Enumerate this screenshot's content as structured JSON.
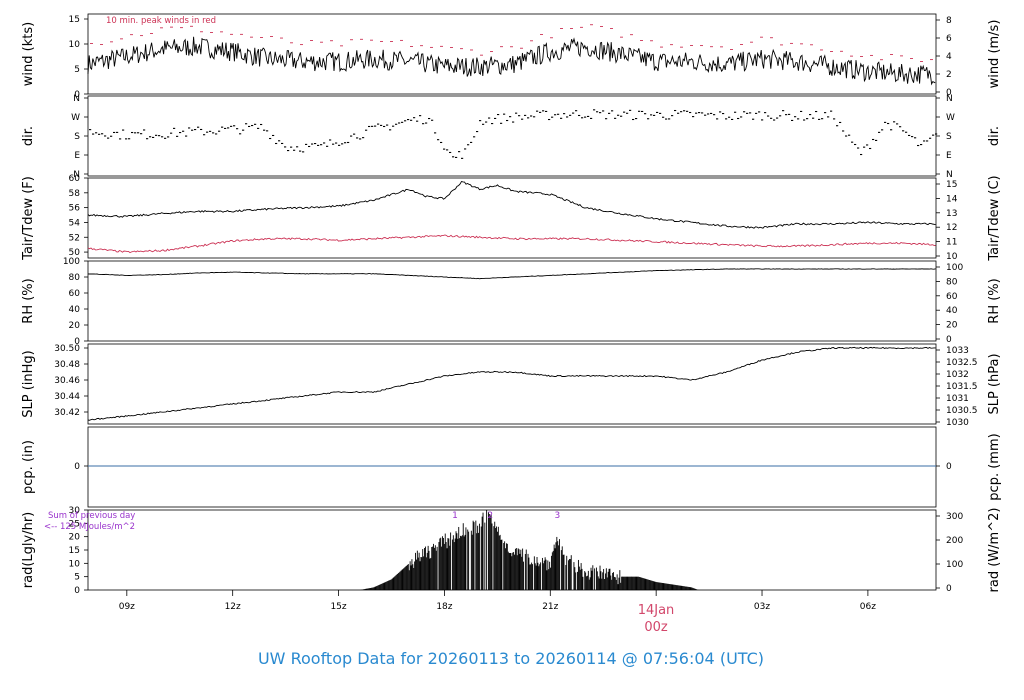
{
  "footer": {
    "title": "UW Rooftop Data for 20260113  to  20260114 @ 07:56:04  (UTC)",
    "date_label": "14Jan",
    "date_label_hour": "00z"
  },
  "colors": {
    "series_main": "#000000",
    "series_peak": "#cc3355",
    "pcp_line": "#3a6ea5",
    "note": "#9933cc",
    "title": "#2a8ad0",
    "date_label": "#d2476b"
  },
  "x_ticks": [
    "09z",
    "12z",
    "15z",
    "18z",
    "21z",
    "03z",
    "06z"
  ],
  "x_tick_hours": [
    9,
    12,
    15,
    18,
    21,
    27,
    30
  ],
  "x_range_hours": [
    7.9,
    31.93
  ],
  "date_label_hour": 24,
  "chart_data": [
    {
      "type": "line",
      "panel": "wind",
      "ylabel_left": "wind (kts)",
      "ylabel_right": "wind (m/s)",
      "yticks_left": [
        "0",
        "5",
        "10",
        "15"
      ],
      "yticks_right": [
        "0",
        "2",
        "4",
        "6",
        "8"
      ],
      "ylim": [
        0,
        16
      ],
      "annotation": "10 min. peak winds in red",
      "series": [
        {
          "role": "wind_speed_kts",
          "x": [
            7.9,
            9,
            10,
            11,
            12,
            13,
            14,
            15,
            16,
            17,
            18,
            19,
            20,
            21,
            22,
            23,
            24,
            25,
            26,
            27,
            28,
            29,
            30,
            31,
            31.9
          ],
          "values": [
            6,
            7.5,
            9,
            9.5,
            8.5,
            7,
            6.5,
            6.5,
            7,
            6.5,
            5.5,
            5.5,
            6,
            8.5,
            9.5,
            8,
            6.5,
            6.5,
            6,
            7,
            6.5,
            5.5,
            4.5,
            4,
            4
          ]
        },
        {
          "role": "peak_wind_kts",
          "x": [
            7.9,
            9,
            10,
            11,
            12,
            13,
            14,
            15,
            16,
            17,
            18,
            19,
            20,
            21,
            22,
            23,
            24,
            25,
            26,
            27,
            28,
            29,
            30,
            31,
            31.9
          ],
          "values": [
            10,
            11.5,
            13,
            13,
            12,
            11,
            10,
            10,
            10.5,
            10,
            9,
            8.5,
            9.5,
            12,
            13.5,
            12,
            10,
            10,
            9.5,
            11,
            10,
            9,
            7.5,
            7,
            7
          ]
        }
      ]
    },
    {
      "type": "scatter",
      "panel": "dir",
      "ylabel_left": "dir.",
      "ylabel_right": "dir.",
      "yticks_left": [
        "N",
        "E",
        "S",
        "W",
        "N"
      ],
      "yticks_right": [
        "N",
        "E",
        "S",
        "W",
        "N"
      ],
      "ylim": [
        0,
        360
      ],
      "series": [
        {
          "role": "wind_direction_deg",
          "x": [
            7.9,
            9,
            10,
            11,
            12,
            12.8,
            13.5,
            14.5,
            15,
            16,
            17,
            17.5,
            18.2,
            18.6,
            19,
            20,
            21,
            22,
            23,
            24,
            25,
            26,
            27,
            28,
            29,
            29.5,
            29.8,
            30.5,
            31,
            31.5,
            31.9
          ],
          "values": [
            200,
            185,
            190,
            200,
            210,
            220,
            130,
            130,
            160,
            210,
            250,
            260,
            80,
            110,
            250,
            265,
            275,
            280,
            275,
            275,
            275,
            270,
            275,
            270,
            270,
            150,
            100,
            240,
            200,
            130,
            180
          ]
        }
      ]
    },
    {
      "type": "line",
      "panel": "temperature",
      "ylabel_left": "Tair/Tdew (F)",
      "ylabel_right": "Tair/Tdew (C)",
      "yticks_left": [
        "50",
        "52",
        "54",
        "56",
        "58",
        "60"
      ],
      "yticks_right": [
        "10",
        "11",
        "12",
        "13",
        "14",
        "15"
      ],
      "ylim": [
        49.2,
        60
      ],
      "series": [
        {
          "role": "air_temperature_F",
          "x": [
            7.9,
            9,
            10,
            11,
            12,
            13,
            14,
            15,
            16,
            17,
            17.5,
            18,
            18.5,
            19,
            19.5,
            20,
            21,
            22,
            23,
            24,
            25,
            26,
            27,
            28,
            29,
            30,
            31,
            31.9
          ],
          "values": [
            55,
            54.8,
            55.2,
            55.5,
            55.5,
            55.8,
            56,
            56.2,
            57,
            58.5,
            57.5,
            57.2,
            59.5,
            58.5,
            59,
            58.2,
            57.8,
            56,
            55.2,
            54.5,
            54,
            53.5,
            53.3,
            53.8,
            53.8,
            54,
            53.8,
            53.8
          ]
        },
        {
          "role": "dew_point_F",
          "x": [
            7.9,
            9,
            10,
            11,
            12,
            13,
            14,
            15,
            16,
            17,
            18,
            19,
            20,
            21,
            22,
            23,
            24,
            25,
            26,
            27,
            28,
            29,
            30,
            31,
            31.9
          ],
          "values": [
            50.5,
            50,
            50.2,
            50.8,
            51.5,
            51.8,
            51.8,
            51.6,
            51.8,
            52,
            52.2,
            52,
            51.8,
            51.8,
            51.8,
            51.6,
            51.4,
            51.2,
            51,
            50.8,
            50.8,
            51,
            51.2,
            51.2,
            51
          ]
        }
      ]
    },
    {
      "type": "line",
      "panel": "rh",
      "ylabel_left": "RH (%)",
      "ylabel_right": "RH (%)",
      "yticks_left": [
        "0",
        "20",
        "40",
        "60",
        "80",
        "100"
      ],
      "yticks_right": [
        "0",
        "20",
        "40",
        "60",
        "80",
        "100"
      ],
      "ylim": [
        0,
        100
      ],
      "series": [
        {
          "role": "relative_humidity_pct",
          "x": [
            7.9,
            9,
            10,
            11,
            12,
            13,
            14,
            15,
            16,
            17,
            18,
            19,
            20,
            21,
            22,
            23,
            24,
            25,
            26,
            27,
            28,
            29,
            30,
            31,
            31.9
          ],
          "values": [
            84,
            82,
            83,
            85,
            86,
            85,
            84,
            84,
            84,
            82,
            80,
            78,
            80,
            82,
            84,
            86,
            88,
            89,
            90,
            90,
            90,
            90,
            90,
            90,
            90
          ]
        }
      ]
    },
    {
      "type": "line",
      "panel": "slp",
      "ylabel_left": "SLP (inHg)",
      "ylabel_right": "SLP (hPa)",
      "yticks_left": [
        "30.42",
        "30.44",
        "30.46",
        "30.48",
        "30.50"
      ],
      "yticks_right": [
        "1030",
        "1030.5",
        "1031",
        "1031.5",
        "1032",
        "1032.5",
        "1033"
      ],
      "ylim": [
        30.405,
        30.505
      ],
      "series": [
        {
          "role": "sea_level_pressure_inHg",
          "x": [
            7.9,
            9,
            10,
            11,
            12,
            13,
            14,
            15,
            16,
            17,
            18,
            19,
            20,
            21,
            22,
            23,
            24,
            25,
            26,
            27,
            28,
            29,
            30,
            31,
            31.9
          ],
          "values": [
            30.41,
            30.415,
            30.42,
            30.425,
            30.43,
            30.435,
            30.44,
            30.445,
            30.445,
            30.455,
            30.465,
            30.47,
            30.47,
            30.465,
            30.465,
            30.465,
            30.465,
            30.46,
            30.47,
            30.485,
            30.495,
            30.5,
            30.5,
            30.5,
            30.5
          ]
        }
      ]
    },
    {
      "type": "line",
      "panel": "pcp",
      "ylabel_left": "pcp. (in)",
      "ylabel_right": "pcp. (mm)",
      "yticks_left": [
        "0"
      ],
      "yticks_right": [
        "0"
      ],
      "ylim": [
        -1,
        1
      ],
      "series": [
        {
          "role": "precipitation_in",
          "x": [
            7.9,
            31.9
          ],
          "values": [
            0,
            0
          ]
        }
      ]
    },
    {
      "type": "area",
      "panel": "radiation",
      "ylabel_left": "rad(Lgly/hr)",
      "ylabel_right": "rad (W/m^2)",
      "yticks_left": [
        "0",
        "5",
        "10",
        "15",
        "20",
        "25",
        "30"
      ],
      "yticks_right": [
        "0",
        "100",
        "200",
        "300"
      ],
      "ylim": [
        0,
        30
      ],
      "note_line1": "Sum of previous day",
      "note_line2": "<-- 125 MJoules/m^2",
      "markers": [
        "1",
        "2",
        "3"
      ],
      "marker_hours": [
        18.3,
        19.3,
        21.2
      ],
      "series": [
        {
          "role": "solar_radiation_lgly_hr",
          "x": [
            15.6,
            16,
            16.5,
            17,
            17.5,
            18,
            18.5,
            19,
            19.2,
            19.4,
            19.7,
            20,
            20.5,
            21,
            21.1,
            21.25,
            21.4,
            21.7,
            22,
            22.5,
            23,
            23.5,
            24,
            24.5,
            25,
            25.2
          ],
          "values": [
            0,
            1,
            4,
            10,
            14,
            18,
            22,
            24,
            29,
            25,
            18,
            14,
            12,
            10,
            16,
            20,
            12,
            9,
            7,
            6,
            5,
            5,
            3,
            2,
            1,
            0
          ]
        }
      ]
    }
  ]
}
